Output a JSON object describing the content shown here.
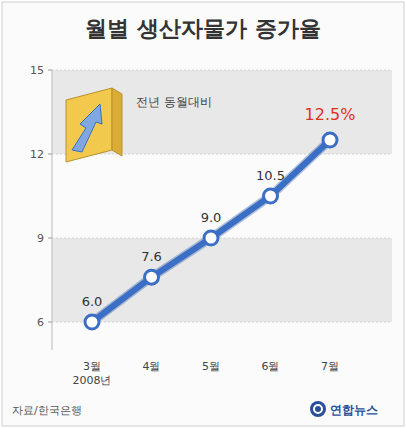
{
  "chart_data": {
    "type": "line",
    "title": "월별 생산자물가 증가율",
    "annotation": "전년 동월대비",
    "categories": [
      "3월\n2008년",
      "4월",
      "5월",
      "6월",
      "7월"
    ],
    "values": [
      6.0,
      7.6,
      9.0,
      10.5,
      12.5
    ],
    "value_labels": [
      "6.0",
      "7.6",
      "9.0",
      "10.5",
      "12.5%"
    ],
    "data_labels": true,
    "color": "#3b6fc6",
    "marker": "circle",
    "ylim": [
      5,
      15
    ],
    "yticks": [
      6,
      9,
      12,
      15
    ],
    "grid": true,
    "source": "자료/한국은행",
    "credit": "연합뉴스"
  }
}
